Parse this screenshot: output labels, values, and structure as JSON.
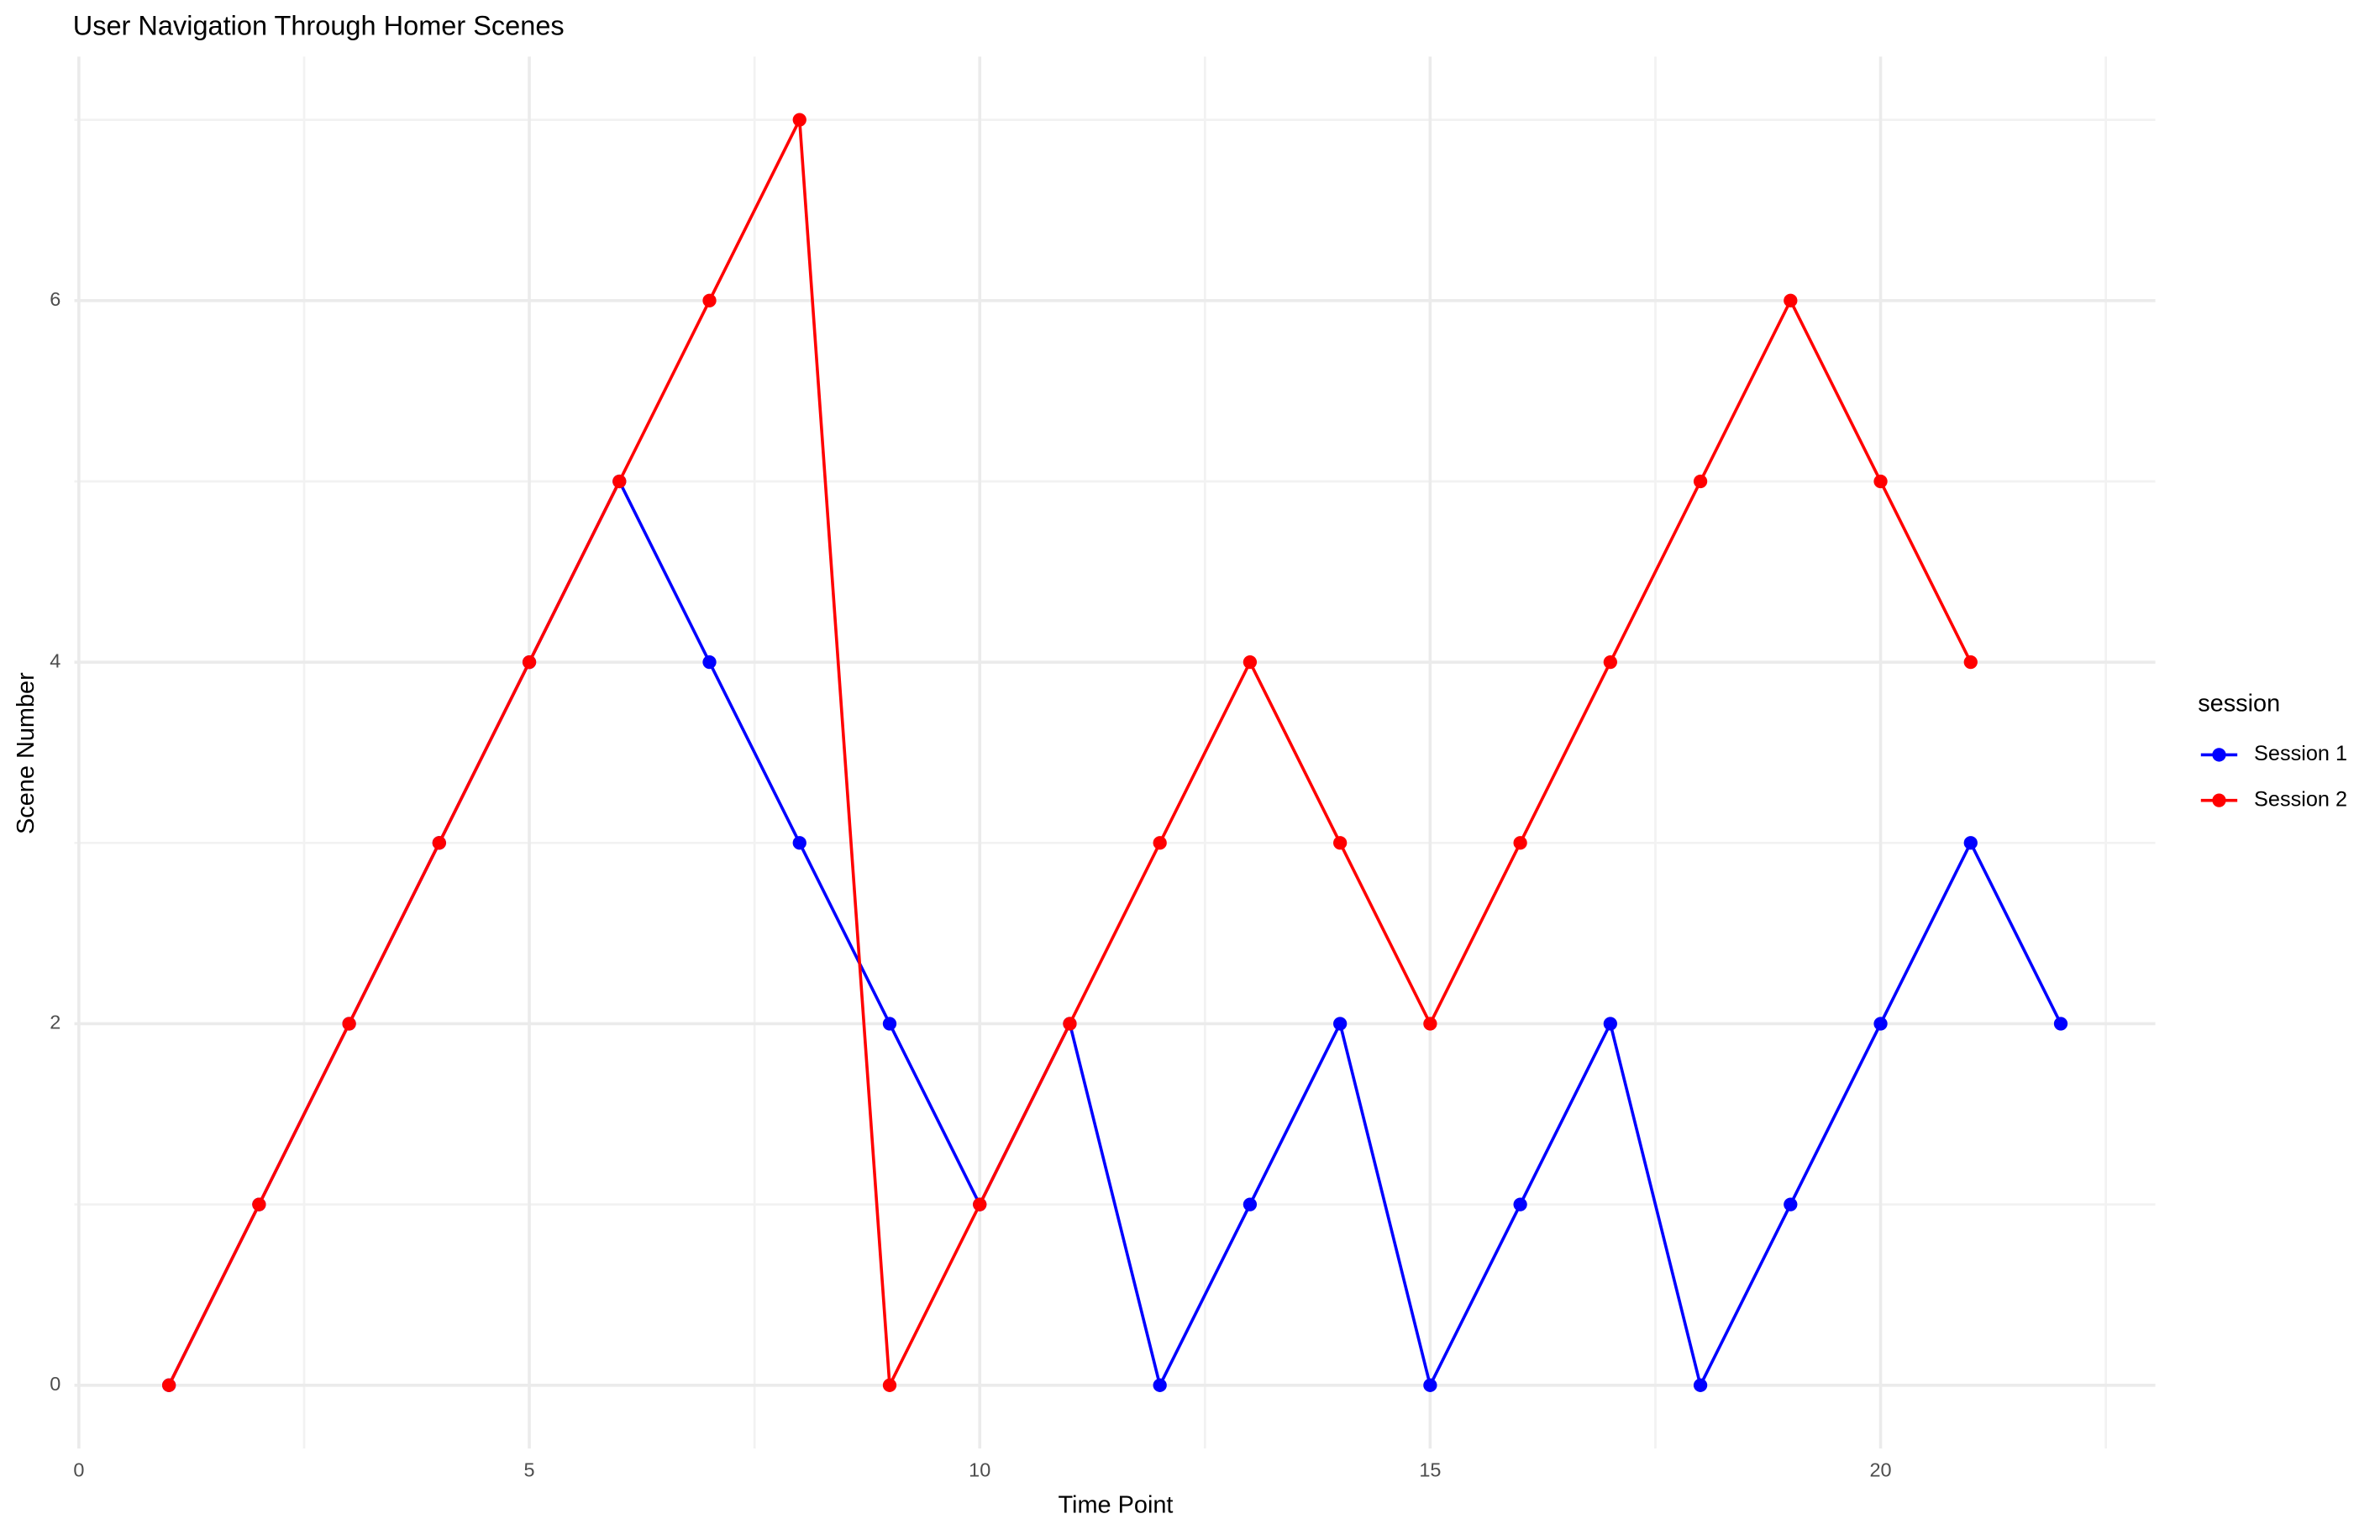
{
  "chart_data": {
    "type": "line",
    "title": "User Navigation Through Homer Scenes",
    "x_label": "Time Point",
    "y_label": "Scene Number",
    "legend_title": "session",
    "legend": "right",
    "x": [
      1,
      2,
      3,
      4,
      5,
      6,
      7,
      8,
      9,
      10,
      11,
      12,
      13,
      14,
      15,
      16,
      17,
      18,
      19,
      20,
      21,
      22
    ],
    "series": [
      {
        "name": "Session 1",
        "color": "#0000ff",
        "values": [
          0,
          1,
          2,
          3,
          4,
          5,
          4,
          3,
          2,
          1,
          2,
          0,
          1,
          2,
          0,
          1,
          2,
          0,
          1,
          2,
          3,
          2
        ]
      },
      {
        "name": "Session 2",
        "color": "#ff0000",
        "values": [
          0,
          1,
          2,
          3,
          4,
          5,
          6,
          7,
          0,
          1,
          2,
          3,
          4,
          3,
          2,
          3,
          4,
          5,
          6,
          5,
          4,
          null
        ]
      }
    ],
    "xlim": [
      -0.05,
      23.05
    ],
    "xticks": [
      0,
      5,
      10,
      15,
      20
    ],
    "ylim": [
      -0.35,
      7.35
    ],
    "yticks": [
      0,
      2,
      4,
      6
    ],
    "x_minor_grid": [
      2.5,
      7.5,
      12.5,
      17.5,
      22.5
    ],
    "y_minor_grid": [
      1,
      3,
      5,
      7
    ],
    "grid": true
  }
}
